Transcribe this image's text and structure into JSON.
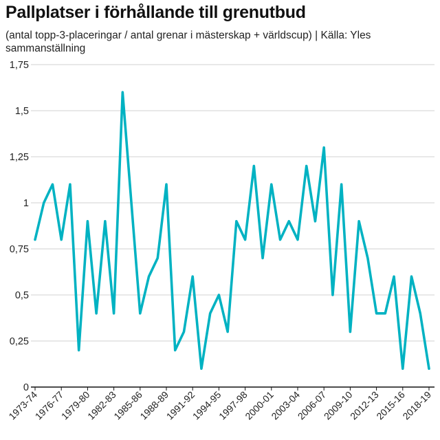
{
  "header": {
    "title": "Pallplatser i förhållande till grenutbud",
    "subtitle": "(antal topp-3-placeringar / antal grenar i mästerskap + världscup) | Källa: Yles sammanställning"
  },
  "colors": {
    "line": "#00b2c2",
    "grid": "#d0d0d0",
    "axis": "#111111"
  },
  "chart_data": {
    "type": "line",
    "title": "Pallplatser i förhållande till grenutbud",
    "subtitle": "(antal topp-3-placeringar / antal grenar i mästerskap + världscup) | Källa: Yles sammanställning",
    "xlabel": "",
    "ylabel": "",
    "ylim": [
      0,
      1.75
    ],
    "yticks": [
      0,
      0.25,
      0.5,
      0.75,
      1,
      1.25,
      1.5,
      1.75
    ],
    "ytick_labels": [
      "0",
      "0,25",
      "0,5",
      "0,75",
      "1",
      "1,25",
      "1,5",
      "1,75"
    ],
    "grid": true,
    "x": [
      "1973-74",
      "1974-75",
      "1975-76",
      "1976-77",
      "1977-78",
      "1978-79",
      "1979-80",
      "1980-81",
      "1981-82",
      "1982-83",
      "1983-84",
      "1984-85",
      "1985-86",
      "1986-87",
      "1987-88",
      "1988-89",
      "1989-90",
      "1990-91",
      "1991-92",
      "1992-93",
      "1993-94",
      "1994-95",
      "1995-96",
      "1996-97",
      "1997-98",
      "1998-99",
      "1999-00",
      "2000-01",
      "2001-02",
      "2002-03",
      "2003-04",
      "2004-05",
      "2005-06",
      "2006-07",
      "2007-08",
      "2008-09",
      "2009-10",
      "2010-11",
      "2011-12",
      "2012-13",
      "2013-14",
      "2014-15",
      "2015-16",
      "2016-17",
      "2017-18",
      "2018-19"
    ],
    "x_tick_labels": [
      "1973-74",
      "1976-77",
      "1979-80",
      "1982-83",
      "1985-86",
      "1988-89",
      "1991-92",
      "1994-95",
      "1997-98",
      "2000-01",
      "2003-04",
      "2006-07",
      "2009-10",
      "2012-13",
      "2015-16",
      "2018-19"
    ],
    "series": [
      {
        "values": [
          0.8,
          1.0,
          1.1,
          0.8,
          1.1,
          0.2,
          0.9,
          0.4,
          0.9,
          0.4,
          1.6,
          1.0,
          0.4,
          0.6,
          0.7,
          1.1,
          0.2,
          0.3,
          0.6,
          0.1,
          0.4,
          0.5,
          0.3,
          0.9,
          0.8,
          1.2,
          0.7,
          1.1,
          0.8,
          0.9,
          0.8,
          1.2,
          0.9,
          1.3,
          0.5,
          1.1,
          0.3,
          0.9,
          0.7,
          0.4,
          0.4,
          0.6,
          0.1,
          0.6,
          0.4,
          0.1
        ]
      }
    ]
  }
}
